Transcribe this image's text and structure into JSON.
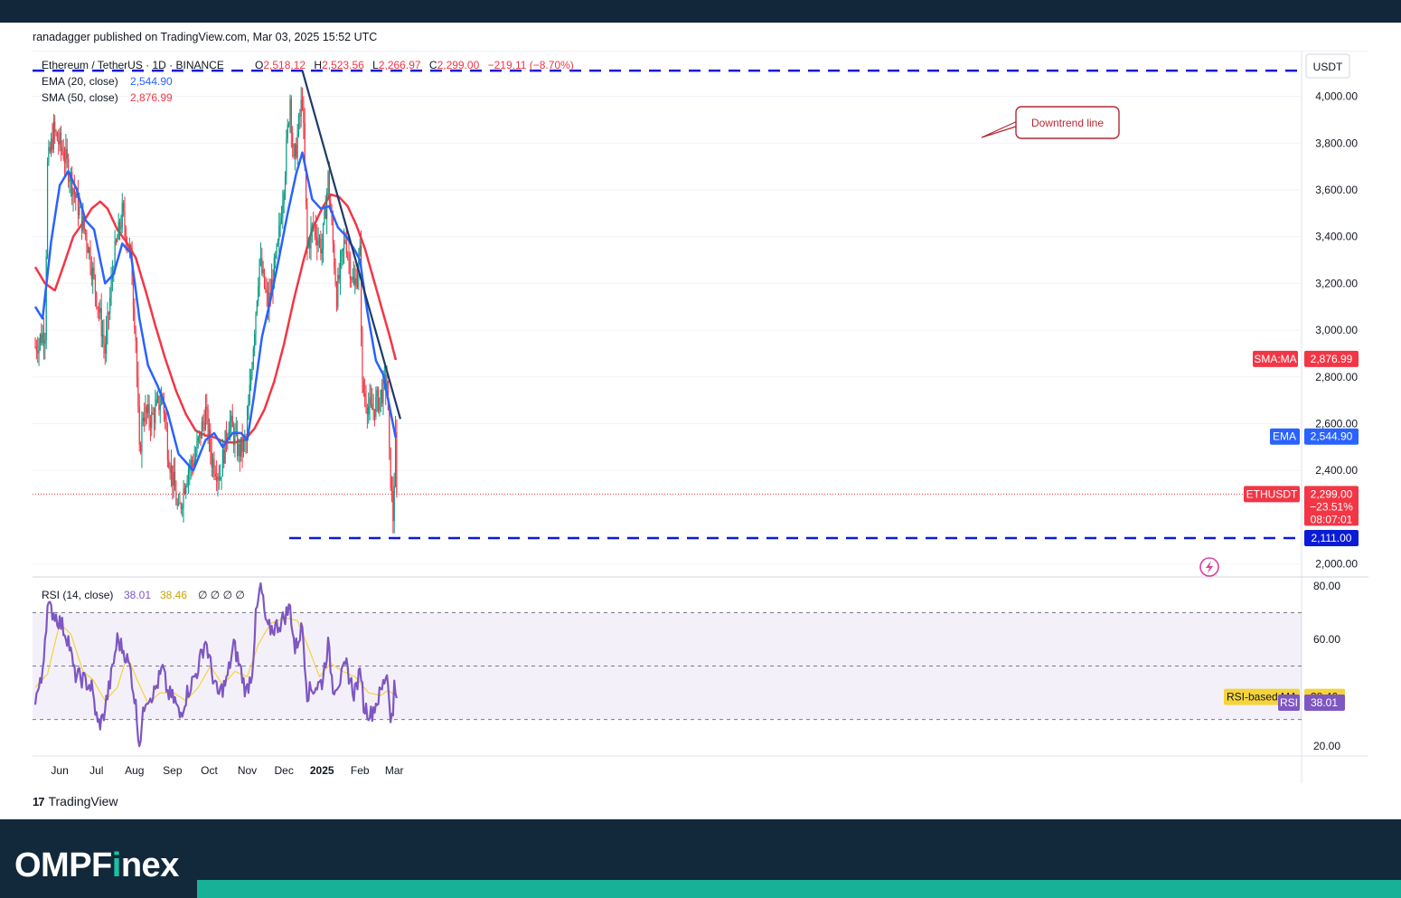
{
  "publisher_line": "ranadagger published on TradingView.com, Mar 03, 2025 15:52 UTC",
  "footer": {
    "tv_logo": "TradingView",
    "brand_prefix": "OMPF",
    "brand_highlight": "i",
    "brand_suffix": "nex"
  },
  "colors": {
    "up": "#089981",
    "down": "#f23645",
    "ema": "#2962ff",
    "sma": "#f23645",
    "rsi": "#7e57c2",
    "rsi_ma": "#f5d33b",
    "levels": "#0a1bd6",
    "trend": "#1e3a6a",
    "callout": "#b22833",
    "price_line": "#f23645"
  },
  "chart_data": [
    {
      "type": "candlestick",
      "symbol_line": "Ethereum / TetherUS · 1D · BINANCE",
      "ohlc": {
        "o_label": "O",
        "o": "2,518.12",
        "h_label": "H",
        "h": "2,523.56",
        "l_label": "L",
        "l": "2,266.97",
        "c_label": "C",
        "c": "2,299.00",
        "change": "−219.11 (−8.70%)"
      },
      "currency": "USDT",
      "indicators": [
        {
          "name": "EMA (20, close)",
          "value": "2,544.90",
          "tag": "EMA"
        },
        {
          "name": "SMA (50, close)",
          "value": "2,876.99",
          "tag": "SMA:MA"
        }
      ],
      "price_axis": {
        "ticks": [
          "4,000.00",
          "3,800.00",
          "3,600.00",
          "3,400.00",
          "3,200.00",
          "3,000.00",
          "2,800.00",
          "2,600.00",
          "2,400.00",
          "2,000.00"
        ],
        "ylim": [
          1960,
          4180
        ]
      },
      "time_axis": [
        "Jun",
        "Jul",
        "Aug",
        "Sep",
        "Oct",
        "Nov",
        "Dec",
        "2025",
        "Feb",
        "Mar"
      ],
      "last_price": {
        "tag": "ETHUSDT",
        "value": "2,299.00",
        "change_pct": "−23.51%",
        "countdown": "08:07:01"
      },
      "levels": [
        {
          "value": 4110,
          "label": ""
        },
        {
          "value": 2111,
          "label": "2,111.00"
        }
      ],
      "trendline": {
        "label": "Downtrend line",
        "from": [
          "2024-12-16",
          4110
        ],
        "to": [
          "2025-03-06",
          2620
        ]
      },
      "price_anchors": [
        [
          "2024-05-12",
          2930
        ],
        [
          "2024-05-20",
          3000
        ],
        [
          "2024-05-22",
          3700
        ],
        [
          "2024-05-27",
          3850
        ],
        [
          "2024-06-04",
          3760
        ],
        [
          "2024-06-10",
          3650
        ],
        [
          "2024-06-17",
          3510
        ],
        [
          "2024-06-24",
          3370
        ],
        [
          "2024-07-04",
          3050
        ],
        [
          "2024-07-08",
          2910
        ],
        [
          "2024-07-15",
          3300
        ],
        [
          "2024-07-22",
          3500
        ],
        [
          "2024-07-29",
          3310
        ],
        [
          "2024-08-02",
          2970
        ],
        [
          "2024-08-05",
          2460
        ],
        [
          "2024-08-08",
          2650
        ],
        [
          "2024-08-15",
          2620
        ],
        [
          "2024-08-24",
          2720
        ],
        [
          "2024-08-28",
          2500
        ],
        [
          "2024-09-06",
          2210
        ],
        [
          "2024-09-13",
          2400
        ],
        [
          "2024-09-19",
          2450
        ],
        [
          "2024-09-28",
          2650
        ],
        [
          "2024-10-03",
          2450
        ],
        [
          "2024-10-10",
          2380
        ],
        [
          "2024-10-17",
          2620
        ],
        [
          "2024-10-25",
          2480
        ],
        [
          "2024-10-31",
          2520
        ],
        [
          "2024-11-06",
          2950
        ],
        [
          "2024-11-11",
          3300
        ],
        [
          "2024-11-18",
          3100
        ],
        [
          "2024-11-26",
          3350
        ],
        [
          "2024-12-02",
          3700
        ],
        [
          "2024-12-06",
          4000
        ],
        [
          "2024-12-09",
          3700
        ],
        [
          "2024-12-16",
          4000
        ],
        [
          "2024-12-20",
          3350
        ],
        [
          "2024-12-25",
          3450
        ],
        [
          "2025-01-01",
          3350
        ],
        [
          "2025-01-06",
          3650
        ],
        [
          "2025-01-13",
          3150
        ],
        [
          "2025-01-20",
          3400
        ],
        [
          "2025-01-27",
          3180
        ],
        [
          "2025-02-01",
          3320
        ],
        [
          "2025-02-03",
          2750
        ],
        [
          "2025-02-10",
          2650
        ],
        [
          "2025-02-17",
          2710
        ],
        [
          "2025-02-23",
          2790
        ],
        [
          "2025-02-25",
          2450
        ],
        [
          "2025-02-28",
          2200
        ],
        [
          "2025-03-02",
          2520
        ],
        [
          "2025-03-03",
          2299
        ]
      ],
      "ema_anchors": [
        [
          "2024-05-12",
          3100
        ],
        [
          "2024-05-18",
          3050
        ],
        [
          "2024-05-25",
          3380
        ],
        [
          "2024-06-01",
          3620
        ],
        [
          "2024-06-08",
          3680
        ],
        [
          "2024-06-15",
          3600
        ],
        [
          "2024-06-22",
          3470
        ],
        [
          "2024-06-29",
          3430
        ],
        [
          "2024-07-08",
          3200
        ],
        [
          "2024-07-15",
          3240
        ],
        [
          "2024-07-22",
          3370
        ],
        [
          "2024-07-29",
          3330
        ],
        [
          "2024-08-05",
          3050
        ],
        [
          "2024-08-12",
          2850
        ],
        [
          "2024-08-20",
          2760
        ],
        [
          "2024-08-28",
          2650
        ],
        [
          "2024-09-06",
          2470
        ],
        [
          "2024-09-13",
          2430
        ],
        [
          "2024-09-18",
          2400
        ],
        [
          "2024-09-28",
          2530
        ],
        [
          "2024-10-05",
          2560
        ],
        [
          "2024-10-12",
          2500
        ],
        [
          "2024-10-20",
          2560
        ],
        [
          "2024-10-27",
          2560
        ],
        [
          "2024-11-01",
          2530
        ],
        [
          "2024-11-06",
          2700
        ],
        [
          "2024-11-13",
          2970
        ],
        [
          "2024-11-20",
          3130
        ],
        [
          "2024-11-27",
          3310
        ],
        [
          "2024-12-04",
          3500
        ],
        [
          "2024-12-11",
          3670
        ],
        [
          "2024-12-16",
          3760
        ],
        [
          "2024-12-24",
          3560
        ],
        [
          "2024-12-31",
          3520
        ],
        [
          "2025-01-07",
          3530
        ],
        [
          "2025-01-14",
          3440
        ],
        [
          "2025-01-21",
          3400
        ],
        [
          "2025-01-28",
          3340
        ],
        [
          "2025-02-01",
          3300
        ],
        [
          "2025-02-07",
          3080
        ],
        [
          "2025-02-14",
          2870
        ],
        [
          "2025-02-20",
          2810
        ],
        [
          "2025-02-26",
          2650
        ],
        [
          "2025-03-02",
          2545
        ]
      ],
      "sma_anchors": [
        [
          "2024-05-12",
          3270
        ],
        [
          "2024-05-20",
          3200
        ],
        [
          "2024-05-28",
          3170
        ],
        [
          "2024-06-05",
          3290
        ],
        [
          "2024-06-12",
          3400
        ],
        [
          "2024-06-20",
          3460
        ],
        [
          "2024-06-27",
          3520
        ],
        [
          "2024-07-04",
          3550
        ],
        [
          "2024-07-10",
          3520
        ],
        [
          "2024-07-18",
          3430
        ],
        [
          "2024-07-25",
          3380
        ],
        [
          "2024-08-02",
          3310
        ],
        [
          "2024-08-10",
          3170
        ],
        [
          "2024-08-18",
          3020
        ],
        [
          "2024-08-26",
          2880
        ],
        [
          "2024-09-04",
          2740
        ],
        [
          "2024-09-12",
          2640
        ],
        [
          "2024-09-20",
          2570
        ],
        [
          "2024-09-28",
          2550
        ],
        [
          "2024-10-06",
          2540
        ],
        [
          "2024-10-14",
          2520
        ],
        [
          "2024-10-22",
          2520
        ],
        [
          "2024-10-30",
          2530
        ],
        [
          "2024-11-07",
          2580
        ],
        [
          "2024-11-15",
          2660
        ],
        [
          "2024-11-23",
          2780
        ],
        [
          "2024-12-01",
          2940
        ],
        [
          "2024-12-09",
          3130
        ],
        [
          "2024-12-17",
          3300
        ],
        [
          "2024-12-24",
          3430
        ],
        [
          "2025-01-01",
          3520
        ],
        [
          "2025-01-08",
          3580
        ],
        [
          "2025-01-15",
          3570
        ],
        [
          "2025-01-22",
          3530
        ],
        [
          "2025-01-29",
          3450
        ],
        [
          "2025-02-05",
          3350
        ],
        [
          "2025-02-12",
          3220
        ],
        [
          "2025-02-19",
          3090
        ],
        [
          "2025-02-26",
          2960
        ],
        [
          "2025-03-02",
          2877
        ]
      ]
    },
    {
      "type": "line",
      "title": "RSI (14, close)",
      "values_line": {
        "rsi": "38.01",
        "ma": "38.46",
        "extra": "∅ ∅ ∅ ∅"
      },
      "axis_ticks": [
        "80.00",
        "60.00",
        "20.00"
      ],
      "ylim": [
        17,
        82
      ],
      "bands": [
        30,
        50,
        70
      ],
      "tags": [
        {
          "label": "RSI-based MA",
          "value": "38.46"
        },
        {
          "label": "RSI",
          "value": "38.01"
        }
      ],
      "rsi_anchors": [
        [
          "2024-05-12",
          38
        ],
        [
          "2024-05-17",
          44
        ],
        [
          "2024-05-22",
          72
        ],
        [
          "2024-05-27",
          70
        ],
        [
          "2024-06-03",
          65
        ],
        [
          "2024-06-08",
          60
        ],
        [
          "2024-06-13",
          47
        ],
        [
          "2024-06-20",
          45
        ],
        [
          "2024-06-27",
          42
        ],
        [
          "2024-07-02",
          28
        ],
        [
          "2024-07-06",
          30
        ],
        [
          "2024-07-13",
          46
        ],
        [
          "2024-07-18",
          60
        ],
        [
          "2024-07-24",
          55
        ],
        [
          "2024-07-29",
          48
        ],
        [
          "2024-08-02",
          35
        ],
        [
          "2024-08-05",
          21
        ],
        [
          "2024-08-10",
          38
        ],
        [
          "2024-08-17",
          40
        ],
        [
          "2024-08-24",
          49
        ],
        [
          "2024-08-28",
          40
        ],
        [
          "2024-09-03",
          37
        ],
        [
          "2024-09-07",
          31
        ],
        [
          "2024-09-13",
          40
        ],
        [
          "2024-09-21",
          48
        ],
        [
          "2024-09-28",
          60
        ],
        [
          "2024-10-03",
          48
        ],
        [
          "2024-10-08",
          39
        ],
        [
          "2024-10-15",
          44
        ],
        [
          "2024-10-21",
          58
        ],
        [
          "2024-10-27",
          48
        ],
        [
          "2024-10-31",
          40
        ],
        [
          "2024-11-05",
          48
        ],
        [
          "2024-11-08",
          68
        ],
        [
          "2024-11-12",
          80
        ],
        [
          "2024-11-17",
          64
        ],
        [
          "2024-11-22",
          64
        ],
        [
          "2024-11-28",
          66
        ],
        [
          "2024-12-06",
          72
        ],
        [
          "2024-12-10",
          56
        ],
        [
          "2024-12-16",
          65
        ],
        [
          "2024-12-20",
          40
        ],
        [
          "2024-12-26",
          42
        ],
        [
          "2025-01-01",
          44
        ],
        [
          "2025-01-06",
          58
        ],
        [
          "2025-01-10",
          42
        ],
        [
          "2025-01-16",
          45
        ],
        [
          "2025-01-21",
          50
        ],
        [
          "2025-01-27",
          40
        ],
        [
          "2025-02-02",
          48
        ],
        [
          "2025-02-04",
          35
        ],
        [
          "2025-02-10",
          32
        ],
        [
          "2025-02-18",
          40
        ],
        [
          "2025-02-23",
          48
        ],
        [
          "2025-02-26",
          32
        ],
        [
          "2025-02-28",
          30
        ],
        [
          "2025-03-01",
          45
        ],
        [
          "2025-03-03",
          38
        ]
      ],
      "ma_anchors": [
        [
          "2024-05-12",
          42
        ],
        [
          "2024-05-22",
          47
        ],
        [
          "2024-06-01",
          66
        ],
        [
          "2024-06-10",
          62
        ],
        [
          "2024-06-20",
          48
        ],
        [
          "2024-06-28",
          45
        ],
        [
          "2024-07-08",
          37
        ],
        [
          "2024-07-18",
          42
        ],
        [
          "2024-07-26",
          54
        ],
        [
          "2024-08-03",
          45
        ],
        [
          "2024-08-12",
          36
        ],
        [
          "2024-08-22",
          40
        ],
        [
          "2024-09-02",
          40
        ],
        [
          "2024-09-12",
          37
        ],
        [
          "2024-09-22",
          42
        ],
        [
          "2024-10-02",
          50
        ],
        [
          "2024-10-12",
          43
        ],
        [
          "2024-10-22",
          48
        ],
        [
          "2024-11-01",
          46
        ],
        [
          "2024-11-10",
          58
        ],
        [
          "2024-11-20",
          66
        ],
        [
          "2024-12-02",
          68
        ],
        [
          "2024-12-12",
          67
        ],
        [
          "2024-12-20",
          58
        ],
        [
          "2024-12-30",
          46
        ],
        [
          "2025-01-08",
          51
        ],
        [
          "2025-01-18",
          48
        ],
        [
          "2025-01-28",
          46
        ],
        [
          "2025-02-08",
          40
        ],
        [
          "2025-02-18",
          39
        ],
        [
          "2025-02-24",
          41
        ],
        [
          "2025-03-03",
          38.46
        ]
      ]
    }
  ]
}
